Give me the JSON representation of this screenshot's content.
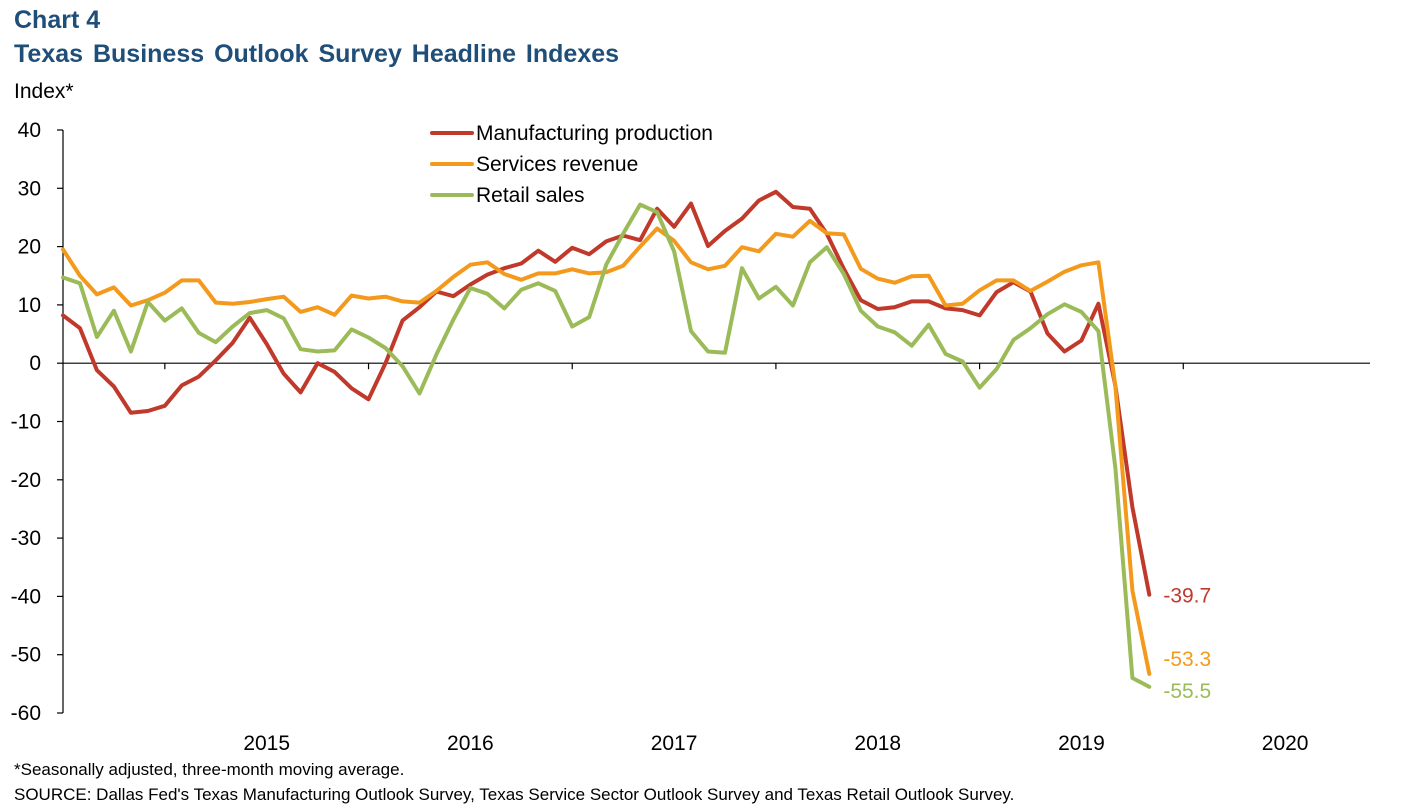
{
  "header": {
    "chart_label": "Chart 4",
    "title": "Texas Business Outlook Survey Headline Indexes",
    "y_unit": "Index*"
  },
  "footer": {
    "note": "*Seasonally adjusted, three-month moving average.",
    "source": "SOURCE: Dallas Fed's Texas Manufacturing Outlook Survey, Texas Service Sector Outlook Survey and Texas Retail Outlook Survey."
  },
  "chart_data": {
    "type": "line",
    "title": "Texas Business Outlook Survey Headline Indexes",
    "ylabel": "Index*",
    "xlabel": "",
    "ylim": [
      -60,
      40
    ],
    "yticks": [
      40,
      30,
      20,
      10,
      0,
      -10,
      -20,
      -30,
      -40,
      -50,
      -60
    ],
    "x_start": "2014-07",
    "x_end": "2020-12",
    "year_ticks": [
      "2015",
      "2016",
      "2017",
      "2018",
      "2019",
      "2020"
    ],
    "grid": false,
    "legend": "top-center",
    "series": [
      {
        "name": "Manufacturing production",
        "color": "#c0392b",
        "end_label": "-39.7",
        "values": [
          8.2,
          6,
          -1.2,
          -4,
          -8.5,
          -8.2,
          -7.3,
          -3.8,
          -2.3,
          0.5,
          3.5,
          7.8,
          3.3,
          -1.8,
          -5,
          0,
          -1.5,
          -4.3,
          -6.2,
          0,
          7.3,
          9.6,
          12.3,
          11.5,
          13.5,
          15.2,
          16.3,
          17.1,
          19.3,
          17.4,
          19.8,
          18.7,
          20.9,
          21.9,
          21.1,
          26.5,
          23.4,
          27.4,
          20.1,
          22.7,
          24.8,
          27.9,
          29.4,
          26.8,
          26.5,
          22.2,
          16.2,
          10.8,
          9.3,
          9.6,
          10.6,
          10.6,
          9.4,
          9.1,
          8.2,
          12.2,
          13.9,
          12.3,
          5.1,
          2,
          3.9,
          10.2,
          -3.9,
          -24.7,
          -39.7
        ]
      },
      {
        "name": "Services revenue",
        "color": "#f39a1d",
        "end_label": "-53.3",
        "values": [
          19.5,
          15,
          11.8,
          13,
          9.9,
          10.8,
          12.1,
          14.2,
          14.2,
          10.4,
          10.2,
          10.5,
          11,
          11.4,
          8.8,
          9.6,
          8.3,
          11.6,
          11.1,
          11.4,
          10.6,
          10.4,
          12.4,
          14.8,
          16.9,
          17.3,
          15.3,
          14.3,
          15.4,
          15.4,
          16.1,
          15.4,
          15.6,
          16.7,
          20,
          23.1,
          21,
          17.3,
          16.1,
          16.7,
          19.9,
          19.2,
          22.2,
          21.7,
          24.4,
          22.3,
          22.1,
          16.2,
          14.5,
          13.8,
          14.9,
          15,
          9.9,
          10.2,
          12.5,
          14.2,
          14.2,
          12.4,
          14,
          15.7,
          16.8,
          17.3,
          -4,
          -39,
          -53.3
        ]
      },
      {
        "name": "Retail sales",
        "color": "#9bbb59",
        "end_label": "-55.5",
        "values": [
          14.7,
          13.7,
          4.5,
          9,
          2,
          10.5,
          7.3,
          9.4,
          5.2,
          3.6,
          6.3,
          8.6,
          9.1,
          7.7,
          2.4,
          2,
          2.2,
          5.8,
          4.4,
          2.6,
          -0.5,
          -5.2,
          1.5,
          7.5,
          12.9,
          11.9,
          9.4,
          12.6,
          13.7,
          12.4,
          6.3,
          7.9,
          16.9,
          22.2,
          27.2,
          25.9,
          19.2,
          5.5,
          2,
          1.8,
          16.3,
          11.1,
          13.1,
          9.9,
          17.3,
          19.9,
          15.3,
          9,
          6.3,
          5.3,
          3,
          6.6,
          1.6,
          0.3,
          -4.2,
          -1,
          4,
          6,
          8.4,
          10.1,
          8.8,
          5.5,
          -18,
          -54,
          -55.5
        ]
      }
    ]
  }
}
